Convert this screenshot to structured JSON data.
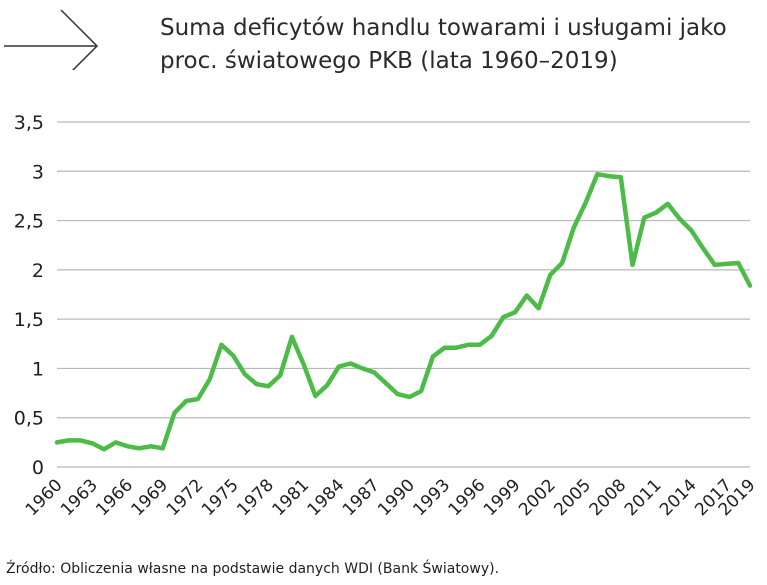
{
  "title_line1": "Suma deficytów handlu towarami i usługami jako",
  "title_line2": "proc. światowego PKB (lata 1960–2019)",
  "source": "Źródło: Obliczenia własne na podstawie danych WDI (Bank Światowy).",
  "colors": {
    "line": "#4cbb47",
    "grid": "#b9b9b9",
    "text": "#1f1f1f"
  },
  "icon": "right-arrow-icon",
  "chart_data": {
    "type": "line",
    "title": "Suma deficytów handlu towarami i usługami jako proc. światowego PKB (lata 1960–2019)",
    "xlabel": "",
    "ylabel": "",
    "ylim": [
      0,
      3.5
    ],
    "grid": true,
    "yticks": [
      0,
      0.5,
      1,
      1.5,
      2,
      2.5,
      3,
      3.5
    ],
    "ytick_labels": [
      "0",
      "0,5",
      "1",
      "1,5",
      "2",
      "2,5",
      "3",
      "3,5"
    ],
    "xticks": [
      1960,
      1963,
      1966,
      1969,
      1972,
      1975,
      1978,
      1981,
      1984,
      1987,
      1990,
      1993,
      1996,
      1999,
      2002,
      2005,
      2008,
      2011,
      2014,
      2017,
      2019
    ],
    "x": [
      1960,
      1961,
      1962,
      1963,
      1964,
      1965,
      1966,
      1967,
      1968,
      1969,
      1970,
      1971,
      1972,
      1973,
      1974,
      1975,
      1976,
      1977,
      1978,
      1979,
      1980,
      1981,
      1982,
      1983,
      1984,
      1985,
      1986,
      1987,
      1988,
      1989,
      1990,
      1991,
      1992,
      1993,
      1994,
      1995,
      1996,
      1997,
      1998,
      1999,
      2000,
      2001,
      2002,
      2003,
      2004,
      2005,
      2006,
      2007,
      2008,
      2009,
      2010,
      2011,
      2012,
      2013,
      2014,
      2015,
      2016,
      2017,
      2018,
      2019
    ],
    "series": [
      {
        "values": [
          0.25,
          0.27,
          0.27,
          0.24,
          0.18,
          0.25,
          0.21,
          0.19,
          0.21,
          0.19,
          0.55,
          0.67,
          0.69,
          0.89,
          1.24,
          1.13,
          0.94,
          0.84,
          0.82,
          0.93,
          1.32,
          1.04,
          0.72,
          0.83,
          1.02,
          1.05,
          1.0,
          0.96,
          0.85,
          0.74,
          0.71,
          0.77,
          1.12,
          1.21,
          1.21,
          1.24,
          1.24,
          1.33,
          1.52,
          1.57,
          1.74,
          1.61,
          1.95,
          2.07,
          2.43,
          2.68,
          2.97,
          2.95,
          2.94,
          2.05,
          2.53,
          2.58,
          2.67,
          2.52,
          2.4,
          2.22,
          2.05,
          2.06,
          2.07,
          1.84
        ]
      }
    ]
  }
}
